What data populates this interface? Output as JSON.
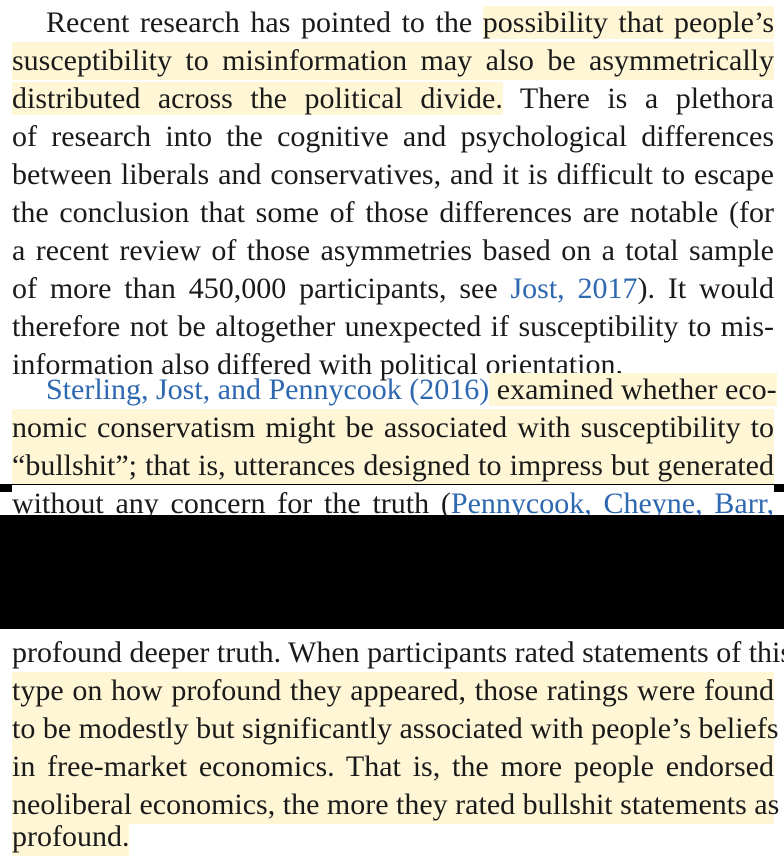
{
  "paragraph1": {
    "l1": {
      "a": "Recent research has pointed to the ",
      "b": "possibility that people’s"
    },
    "l2": "susceptibility to misinformation may also be asymmetrically",
    "l3": {
      "a": "distributed across the political divide.",
      "b": " There is a plethora"
    },
    "l4": "of research into the cognitive and psychological differences",
    "l5": "between liberals and conservatives, and it is difficult to escape",
    "l6": "the conclusion that some of those differences are notable (for",
    "l7": "a recent review of those asymmetries based on a total sample",
    "l8": {
      "a": "of more than 450,000 participants, see ",
      "cite": "Jost, 2017",
      "b": "). It would"
    },
    "l9": "therefore not be altogether unexpected if susceptibility to mis-",
    "l10": "information also differed with political orientation."
  },
  "paragraph2": {
    "l1": {
      "cite": "Sterling, Jost, and Pennycook (2016)",
      "b": " examined whether eco-"
    },
    "l2": "nomic conservatism might be associated with susceptibility to",
    "l3": "“bullshit”; that is, utterances designed to impress but generated",
    "l4": {
      "a": "without any concern for the truth (",
      "cite": "Pennycook, Cheyne, Barr,"
    },
    "l5": "profound deeper truth. When participants rated statements of this",
    "l6": "type on how profound they appeared, those ratings were found",
    "l7": "to be modestly but significantly associated with people’s beliefs",
    "l8": "in free-market economics. That is, the more people endorsed",
    "l9": "neoliberal economics, the more they rated bullshit statements as",
    "l10": "profound."
  }
}
